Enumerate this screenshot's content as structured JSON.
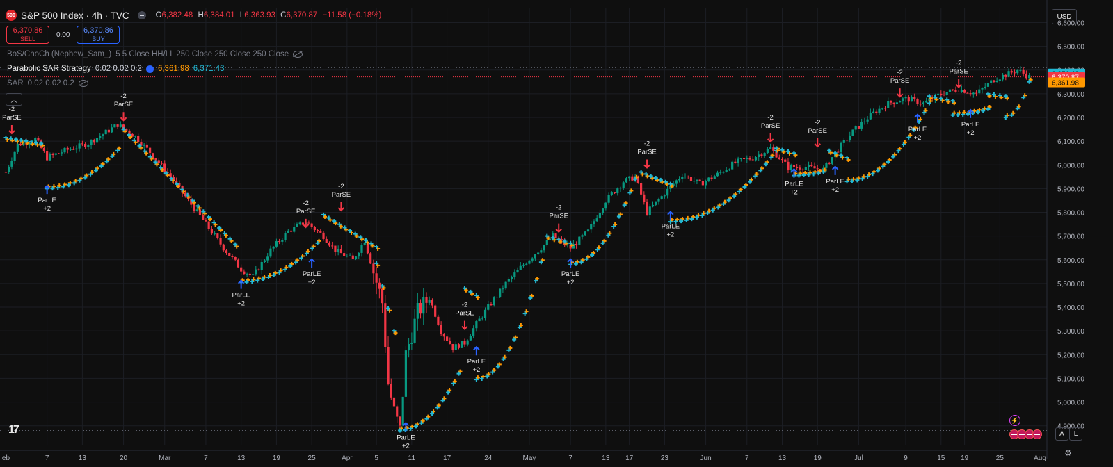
{
  "header": {
    "logo_text": "500",
    "title": "S&P 500 Index · 4h · TVC",
    "ohlc": [
      {
        "key": "O",
        "value": "6,382.48"
      },
      {
        "key": "H",
        "value": "6,384.01"
      },
      {
        "key": "L",
        "value": "6,363.93"
      },
      {
        "key": "C",
        "value": "6,370.87"
      }
    ],
    "change": "−11.58 (−0.18%)"
  },
  "trade": {
    "sell_price": "6,370.86",
    "sell_label": "SELL",
    "spread": "0.00",
    "buy_price": "6,370.86",
    "buy_label": "BUY"
  },
  "indicators": [
    {
      "name": "BoS/ChoCh (Nephew_Sam_)",
      "params": "5 5 Close HH/LL 250 Close 250 Close 250 Close"
    },
    {
      "name": "Parabolic SAR Strategy",
      "params": "0.02 0.02 0.2",
      "value_orange": "6,361.98",
      "value_cyan": "6,371.43"
    },
    {
      "name": "SAR",
      "params": "0.02 0.02 0.2"
    }
  ],
  "currency": "USD",
  "scale_buttons": {
    "auto": "A",
    "log": "L"
  },
  "price_labels": {
    "cyan": "6,371.43",
    "red": "6,370.87",
    "orange": "6,361.98"
  },
  "colors": {
    "up": "#089981",
    "down": "#f23645",
    "sar_cyan": "#22b8d4",
    "sar_orange": "#ff9800",
    "long_arrow": "#2962ff",
    "short_arrow": "#f23645"
  },
  "chart_data": {
    "type": "candlestick",
    "timeframe": "4h",
    "ylim": [
      4820,
      6660
    ],
    "y_ticks": [
      4900,
      5000,
      5100,
      5200,
      5300,
      5400,
      5500,
      5600,
      5700,
      5800,
      5900,
      6000,
      6100,
      6200,
      6300,
      6400,
      6500,
      6600
    ],
    "y_tick_labels": [
      "4,900.00",
      "5,000.00",
      "5,100.00",
      "5,200.00",
      "5,300.00",
      "5,400.00",
      "5,500.00",
      "5,600.00",
      "5,700.00",
      "5,800.00",
      "5,900.00",
      "6,000.00",
      "6,100.00",
      "6,200.00",
      "6,300.00",
      "6,400.00",
      "6,500.00",
      "6,600.00"
    ],
    "x_labels": [
      "eb",
      "7",
      "13",
      "20",
      "Mar",
      "7",
      "13",
      "19",
      "25",
      "Apr",
      "5",
      "11",
      "17",
      "24",
      "May",
      "7",
      "13",
      "17",
      "23",
      "Jun",
      "7",
      "13",
      "19",
      "Jul",
      "9",
      "15",
      "19",
      "25",
      "Aug"
    ],
    "x_label_days": [
      0,
      7,
      13,
      20,
      27,
      34,
      40,
      46,
      52,
      58,
      63,
      69,
      75,
      82,
      89,
      96,
      102,
      106,
      112,
      119,
      126,
      132,
      138,
      145,
      153,
      159,
      163,
      169,
      176
    ],
    "price_path": [
      [
        0,
        5970
      ],
      [
        2,
        6085
      ],
      [
        5,
        6110
      ],
      [
        7,
        6030
      ],
      [
        10,
        6060
      ],
      [
        14,
        6090
      ],
      [
        19,
        6170
      ],
      [
        22,
        6120
      ],
      [
        25,
        6040
      ],
      [
        28,
        5950
      ],
      [
        31,
        5850
      ],
      [
        34,
        5750
      ],
      [
        37,
        5650
      ],
      [
        40,
        5560
      ],
      [
        42,
        5530
      ],
      [
        45,
        5640
      ],
      [
        48,
        5720
      ],
      [
        51,
        5760
      ],
      [
        54,
        5700
      ],
      [
        56,
        5640
      ],
      [
        59,
        5600
      ],
      [
        61,
        5680
      ],
      [
        64,
        5420
      ],
      [
        65,
        5080
      ],
      [
        66,
        4960
      ],
      [
        67,
        4880
      ],
      [
        68,
        5200
      ],
      [
        70,
        5380
      ],
      [
        72,
        5440
      ],
      [
        74,
        5300
      ],
      [
        76,
        5230
      ],
      [
        78,
        5250
      ],
      [
        80,
        5330
      ],
      [
        82,
        5400
      ],
      [
        85,
        5500
      ],
      [
        88,
        5580
      ],
      [
        91,
        5650
      ],
      [
        93,
        5700
      ],
      [
        96,
        5650
      ],
      [
        99,
        5720
      ],
      [
        102,
        5850
      ],
      [
        105,
        5930
      ],
      [
        107,
        5950
      ],
      [
        109,
        5800
      ],
      [
        112,
        5880
      ],
      [
        115,
        5960
      ],
      [
        118,
        5920
      ],
      [
        121,
        5960
      ],
      [
        124,
        6010
      ],
      [
        127,
        6030
      ],
      [
        130,
        6070
      ],
      [
        133,
        5990
      ],
      [
        136,
        5990
      ],
      [
        139,
        5980
      ],
      [
        141,
        6050
      ],
      [
        144,
        6140
      ],
      [
        147,
        6210
      ],
      [
        150,
        6260
      ],
      [
        153,
        6280
      ],
      [
        156,
        6260
      ],
      [
        159,
        6300
      ],
      [
        162,
        6320
      ],
      [
        165,
        6300
      ],
      [
        168,
        6360
      ],
      [
        171,
        6390
      ],
      [
        172,
        6400
      ],
      [
        174,
        6371
      ]
    ],
    "sar_segments": [
      {
        "dir": "down",
        "from": [
          0,
          6115
        ],
        "to": [
          6,
          6090
        ]
      },
      {
        "dir": "up",
        "from": [
          7,
          5900
        ],
        "to": [
          19,
          6060
        ]
      },
      {
        "dir": "down",
        "from": [
          20,
          6150
        ],
        "to": [
          39,
          5665
        ]
      },
      {
        "dir": "up",
        "from": [
          40,
          5505
        ],
        "to": [
          53,
          5670
        ]
      },
      {
        "dir": "down",
        "from": [
          54,
          5790
        ],
        "to": [
          63,
          5655
        ]
      },
      {
        "dir": "down",
        "from": [
          63,
          5585
        ],
        "to": [
          66,
          5300
        ]
      },
      {
        "dir": "up",
        "from": [
          67,
          4880
        ],
        "to": [
          77,
          5120
        ]
      },
      {
        "dir": "down",
        "from": [
          78,
          5480
        ],
        "to": [
          80,
          5450
        ]
      },
      {
        "dir": "up",
        "from": [
          80,
          5095
        ],
        "to": [
          91,
          5590
        ]
      },
      {
        "dir": "down",
        "from": [
          92,
          5700
        ],
        "to": [
          96,
          5670
        ]
      },
      {
        "dir": "up",
        "from": [
          96,
          5580
        ],
        "to": [
          107,
          5940
        ]
      },
      {
        "dir": "down",
        "from": [
          108,
          5970
        ],
        "to": [
          113,
          5920
        ]
      },
      {
        "dir": "up",
        "from": [
          113,
          5760
        ],
        "to": [
          131,
          6060
        ]
      },
      {
        "dir": "down",
        "from": [
          131,
          6070
        ],
        "to": [
          134,
          6050
        ]
      },
      {
        "dir": "up",
        "from": [
          134,
          5955
        ],
        "to": [
          139,
          5970
        ]
      },
      {
        "dir": "down",
        "from": [
          140,
          6060
        ],
        "to": [
          143,
          6030
        ]
      },
      {
        "dir": "up",
        "from": [
          143,
          5930
        ],
        "to": [
          157,
          6260
        ]
      },
      {
        "dir": "down",
        "from": [
          157,
          6290
        ],
        "to": [
          161,
          6270
        ]
      },
      {
        "dir": "up",
        "from": [
          161,
          6210
        ],
        "to": [
          167,
          6235
        ]
      },
      {
        "dir": "down",
        "from": [
          167,
          6300
        ],
        "to": [
          170,
          6290
        ]
      },
      {
        "dir": "up",
        "from": [
          170,
          6200
        ],
        "to": [
          174,
          6350
        ]
      }
    ],
    "signals": [
      {
        "type": "short",
        "day": 1,
        "price": 6115,
        "label": "ParSE",
        "qty": "-2"
      },
      {
        "type": "long",
        "day": 7,
        "price": 5930,
        "label": "ParLE",
        "qty": "+2"
      },
      {
        "type": "short",
        "day": 20,
        "price": 6170,
        "label": "ParSE",
        "qty": "-2"
      },
      {
        "type": "long",
        "day": 40,
        "price": 5530,
        "label": "ParLE",
        "qty": "+2"
      },
      {
        "type": "short",
        "day": 51,
        "price": 5720,
        "label": "ParSE",
        "qty": "-2"
      },
      {
        "type": "long",
        "day": 52,
        "price": 5620,
        "label": "ParLE",
        "qty": "+2"
      },
      {
        "type": "short",
        "day": 57,
        "price": 5790,
        "label": "ParSE",
        "qty": "-2"
      },
      {
        "type": "long",
        "day": 68,
        "price": 4930,
        "label": "ParLE",
        "qty": "+2"
      },
      {
        "type": "short",
        "day": 78,
        "price": 5290,
        "label": "ParSE",
        "qty": "-2"
      },
      {
        "type": "long",
        "day": 80,
        "price": 5250,
        "label": "ParLE",
        "qty": "+2"
      },
      {
        "type": "short",
        "day": 94,
        "price": 5700,
        "label": "ParSE",
        "qty": "-2"
      },
      {
        "type": "long",
        "day": 96,
        "price": 5620,
        "label": "ParLE",
        "qty": "+2"
      },
      {
        "type": "short",
        "day": 109,
        "price": 5970,
        "label": "ParSE",
        "qty": "-2"
      },
      {
        "type": "long",
        "day": 113,
        "price": 5820,
        "label": "ParLE",
        "qty": "+2"
      },
      {
        "type": "short",
        "day": 130,
        "price": 6080,
        "label": "ParSE",
        "qty": "-2"
      },
      {
        "type": "long",
        "day": 134,
        "price": 6000,
        "label": "ParLE",
        "qty": "+2"
      },
      {
        "type": "short",
        "day": 138,
        "price": 6060,
        "label": "ParSE",
        "qty": "-2"
      },
      {
        "type": "long",
        "day": 141,
        "price": 6010,
        "label": "ParLE",
        "qty": "+2"
      },
      {
        "type": "short",
        "day": 152,
        "price": 6270,
        "label": "ParSE",
        "qty": "-2"
      },
      {
        "type": "long",
        "day": 155,
        "price": 6230,
        "label": "ParLE",
        "qty": "+2"
      },
      {
        "type": "short",
        "day": 162,
        "price": 6310,
        "label": "ParSE",
        "qty": "-2"
      },
      {
        "type": "long",
        "day": 164,
        "price": 6250,
        "label": "ParLE",
        "qty": "+2"
      }
    ],
    "last_price": 6370.87,
    "low_line": 4880
  }
}
